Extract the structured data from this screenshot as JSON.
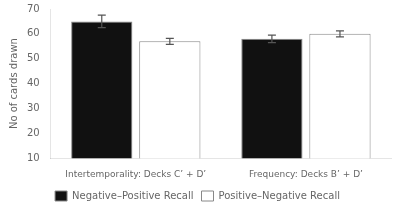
{
  "chart_data": {
    "type": "bar",
    "categories": [
      "Intertemporality: Decks C’ + D’",
      "Frequency: Decks B’ + D’"
    ],
    "series": [
      {
        "name": "Negative–Positive Recall",
        "color": "#111111",
        "values": [
          65,
          58
        ],
        "errors": [
          2.5,
          1.5
        ]
      },
      {
        "name": "Positive–Negative Recall",
        "color": "#ffffff",
        "values": [
          57,
          60
        ],
        "errors": [
          1.2,
          1.2
        ]
      }
    ],
    "ylabel": "No of cards drawn",
    "ylim": [
      10,
      70
    ],
    "yticks": [
      10,
      20,
      30,
      40,
      50,
      60,
      70
    ],
    "grid": false,
    "legend": "bottom"
  }
}
